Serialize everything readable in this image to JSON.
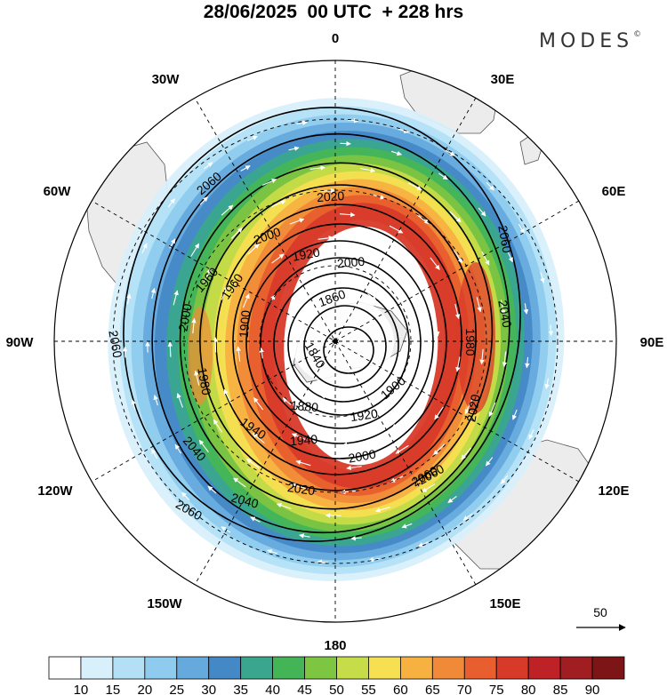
{
  "title": "28/06/2025  00 UTC  + 228 hrs",
  "brand": {
    "name": "MODES",
    "mark": "©"
  },
  "lon_labels": [
    {
      "id": "0",
      "text": "0"
    },
    {
      "id": "30e",
      "text": "30E"
    },
    {
      "id": "60e",
      "text": "60E"
    },
    {
      "id": "90e",
      "text": "90E"
    },
    {
      "id": "120e",
      "text": "120E"
    },
    {
      "id": "150e",
      "text": "150E"
    },
    {
      "id": "180",
      "text": "180"
    },
    {
      "id": "150w",
      "text": "150W"
    },
    {
      "id": "120w",
      "text": "120W"
    },
    {
      "id": "90w",
      "text": "90W"
    },
    {
      "id": "60w",
      "text": "60W"
    },
    {
      "id": "30w",
      "text": "30W"
    }
  ],
  "contour_labels": [
    "2060",
    "2060",
    "2060",
    "2060",
    "2060",
    "2020",
    "2000",
    "1960",
    "1920",
    "1860",
    "1840",
    "1880",
    "1900",
    "1920",
    "1940",
    "1980",
    "2000",
    "2040",
    "1940",
    "2000",
    "2020",
    "2040",
    "2060",
    "2040",
    "1980",
    "2020",
    "1960",
    "2000",
    "1900"
  ],
  "vector_reference": {
    "value": "50"
  },
  "colorbar": {
    "ticks": [
      "10",
      "15",
      "20",
      "25",
      "30",
      "35",
      "40",
      "45",
      "50",
      "55",
      "60",
      "65",
      "70",
      "75",
      "80",
      "85",
      "90"
    ],
    "colors": [
      "#ffffff",
      "#d8f0fb",
      "#b3e0f5",
      "#8ecbee",
      "#66a9dd",
      "#4488c6",
      "#3aa68e",
      "#44b556",
      "#7ec542",
      "#c6dc48",
      "#f7df52",
      "#f7b141",
      "#f08a38",
      "#e85e2e",
      "#d83a29",
      "#bf2226",
      "#a01d22",
      "#7d1517"
    ]
  },
  "wind_levels": [
    {
      "speed": 12,
      "color": "#d8f0fb"
    },
    {
      "speed": 17,
      "color": "#b3e0f5"
    },
    {
      "speed": 22,
      "color": "#8ecbee"
    },
    {
      "speed": 27,
      "color": "#66a9dd"
    },
    {
      "speed": 32,
      "color": "#4488c6"
    },
    {
      "speed": 37,
      "color": "#3aa68e"
    },
    {
      "speed": 42,
      "color": "#44b556"
    },
    {
      "speed": 47,
      "color": "#7ec542"
    },
    {
      "speed": 52,
      "color": "#c6dc48"
    },
    {
      "speed": 57,
      "color": "#f7df52"
    },
    {
      "speed": 62,
      "color": "#f7b141"
    },
    {
      "speed": 67,
      "color": "#f08a38"
    },
    {
      "speed": 72,
      "color": "#e85e2e"
    },
    {
      "speed": 77,
      "color": "#d83a29"
    }
  ]
}
